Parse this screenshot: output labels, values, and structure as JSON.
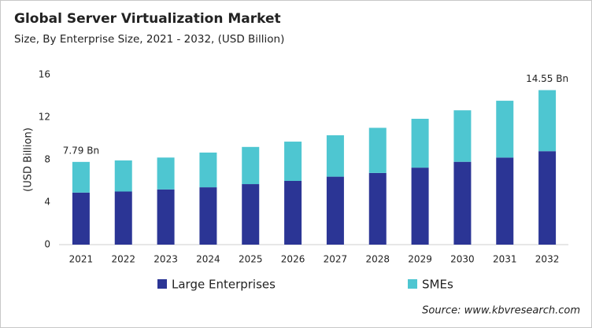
{
  "chart_data": {
    "type": "stacked-bar",
    "title": "Global Server Virtualization Market",
    "subtitle": "Size, By Enterprise Size, 2021 - 2032, (USD Billion)",
    "y_label": "(USD Billion)",
    "source": "Source: www.kbvresearch.com",
    "categories": [
      "2021",
      "2022",
      "2023",
      "2024",
      "2025",
      "2026",
      "2027",
      "2028",
      "2029",
      "2030",
      "2031",
      "2032"
    ],
    "series": [
      {
        "name": "Large Enterprises",
        "color": "#2b3595",
        "values": [
          4.9,
          5.0,
          5.2,
          5.4,
          5.7,
          6.0,
          6.4,
          6.75,
          7.25,
          7.8,
          8.2,
          8.8
        ]
      },
      {
        "name": "SMEs",
        "color": "#4ec6d1",
        "values": [
          2.89,
          2.93,
          3.0,
          3.27,
          3.5,
          3.7,
          3.9,
          4.25,
          4.6,
          4.85,
          5.35,
          5.75
        ]
      }
    ],
    "annotations": [
      {
        "x": "2021",
        "value": 7.79,
        "label": "7.79 Bn"
      },
      {
        "x": "2032",
        "value": 14.55,
        "label": "14.55 Bn"
      }
    ],
    "ylim": [
      0,
      16
    ],
    "yticks": [
      0,
      4,
      8,
      12,
      16
    ],
    "grid": false
  }
}
